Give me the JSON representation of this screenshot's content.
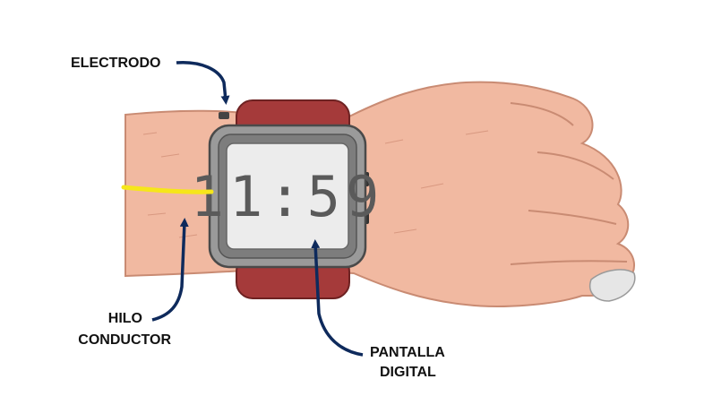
{
  "labels": {
    "electrode": "ELECTRODO",
    "wire_line1": "HILO",
    "wire_line2": "CONDUCTOR",
    "screen_line1": "PANTALLA",
    "screen_line2": "DIGITAL"
  },
  "watch": {
    "time": "11:59"
  },
  "colors": {
    "skin": "#f1b9a1",
    "strap": "#a53a3a",
    "case": "#9a9a9a",
    "screen": "#ececec",
    "wire": "#f6e61a",
    "arrow": "#0e2a5c"
  }
}
